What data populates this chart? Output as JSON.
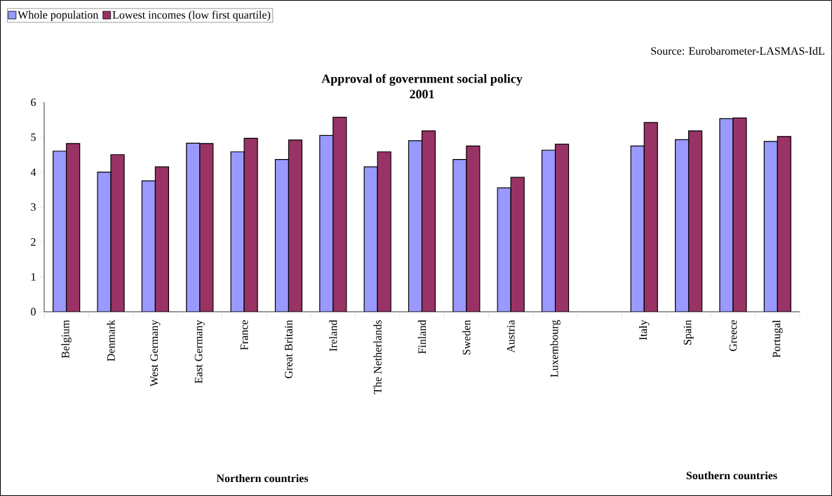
{
  "chart_data": {
    "type": "bar",
    "title": "Approval of government social policy",
    "subtitle": "2001",
    "categories": [
      "Belgium",
      "Denmark",
      "West Germany",
      "East Germany",
      "France",
      "Great Britain",
      "Ireland",
      "The Netherlands",
      "Finland",
      "Sweden",
      "Austria",
      "Luxembourg",
      null,
      "Italy",
      "Spain",
      "Greece",
      "Portugal"
    ],
    "series": [
      {
        "name": "Whole population",
        "color": "#9999ff",
        "values": [
          4.6,
          4.0,
          3.75,
          4.83,
          4.58,
          4.36,
          5.05,
          4.15,
          4.9,
          4.36,
          3.55,
          4.63,
          null,
          4.75,
          4.93,
          5.53,
          4.88
        ]
      },
      {
        "name": "Lowest incomes (low first quartile)",
        "color": "#993366",
        "values": [
          4.82,
          4.5,
          4.15,
          4.82,
          4.97,
          4.92,
          5.57,
          4.58,
          5.18,
          4.75,
          3.85,
          4.8,
          null,
          5.42,
          5.18,
          5.55,
          5.02
        ]
      }
    ],
    "ylim": [
      0,
      6
    ],
    "yticks": [
      0,
      1,
      2,
      3,
      4,
      5,
      6
    ],
    "grid": false,
    "legend": "top left",
    "annotations": [
      "Source: Eurobarometer-LASMAS-IdL",
      "Northern countries",
      "Southern countries"
    ]
  }
}
